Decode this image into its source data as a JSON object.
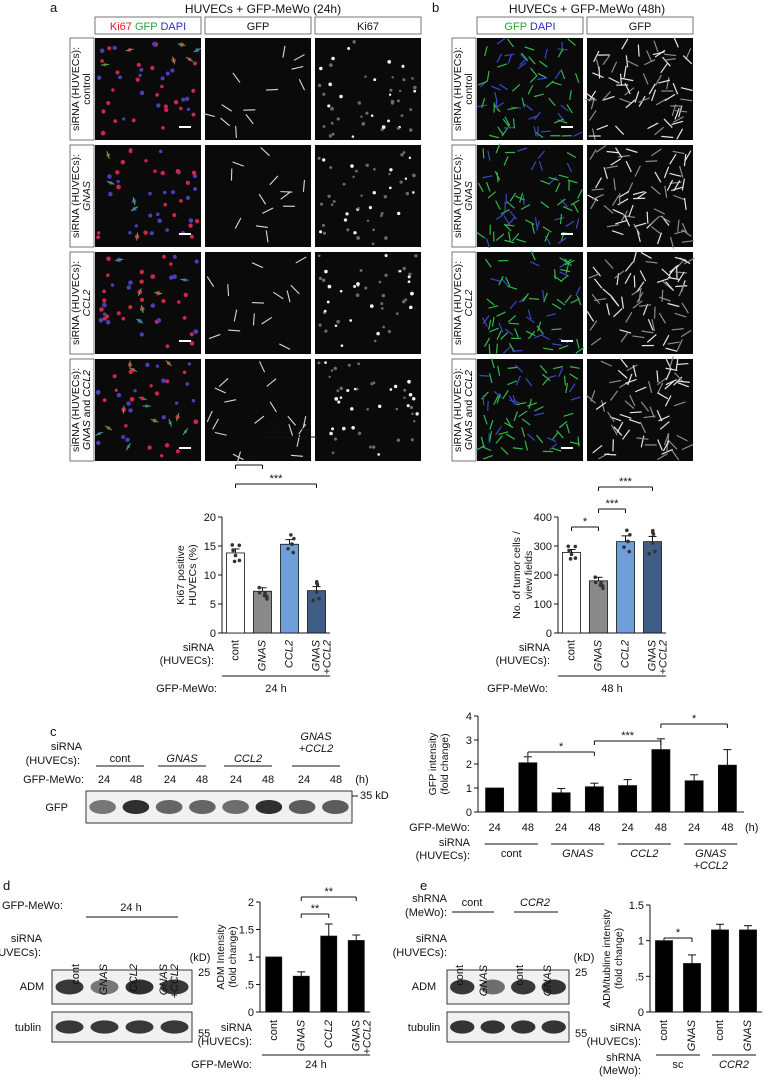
{
  "panels": {
    "a": {
      "letter": "a",
      "title": "HUVECs + GFP-MeWo (24h)",
      "columns": [
        {
          "parts": [
            {
              "text": "Ki67",
              "color": "#e8192c"
            },
            {
              "text": " GFP",
              "color": "#2aa335"
            },
            {
              "text": " DAPI",
              "color": "#2b2fbf"
            }
          ]
        },
        {
          "parts": [
            {
              "text": "GFP",
              "color": "#111111"
            }
          ]
        },
        {
          "parts": [
            {
              "text": "Ki67",
              "color": "#111111"
            }
          ]
        }
      ]
    },
    "b": {
      "letter": "b",
      "title": "HUVECs + GFP-MeWo (48h)",
      "columns": [
        {
          "parts": [
            {
              "text": "GFP",
              "color": "#2aa335"
            },
            {
              "text": "   DAPI",
              "color": "#2b2fbf"
            }
          ]
        },
        {
          "parts": [
            {
              "text": "GFP",
              "color": "#111111"
            }
          ]
        }
      ]
    },
    "c": {
      "letter": "c"
    },
    "d": {
      "letter": "d"
    },
    "e": {
      "letter": "e"
    }
  },
  "row_labels": [
    {
      "l1": "siRNA (HUVECs):",
      "l2": "control",
      "l2_italic": false
    },
    {
      "l1": "siRNA (HUVECs):",
      "l2": "GNAS",
      "l2_italic": true
    },
    {
      "l1": "siRNA (HUVECs):",
      "l2": "CCL2",
      "l2_italic": true
    },
    {
      "l1": "siRNA (HUVECs):",
      "l2": "GNAS and CCL2",
      "l2_italic": false
    }
  ],
  "chart_data": [
    {
      "panel": "a",
      "type": "bar",
      "categories": [
        "cont",
        "GNAS",
        "CCL2",
        "GNAS +CCL2"
      ],
      "values": [
        13.8,
        7.2,
        15.3,
        7.3
      ],
      "errors": [
        0.7,
        0.6,
        0.8,
        0.7
      ],
      "ylabel": "Ki67 positive HUVECs (%)",
      "ylim": [
        0,
        20
      ],
      "yticks": [
        0,
        5,
        10,
        15,
        20
      ],
      "bar_colors": [
        "#ffffff",
        "#8a8a8a",
        "#6f9fd8",
        "#3f5d86"
      ],
      "significance": [
        {
          "from": 0,
          "to": 1,
          "label": "***"
        },
        {
          "from": 1,
          "to": 2,
          "label": "***"
        },
        {
          "from": 2,
          "to": 3,
          "label": "***"
        },
        {
          "from": 0,
          "to": 3,
          "label": "***"
        }
      ],
      "row_label": "siRNA (HUVECs):",
      "group_label": "GFP-MeWo:",
      "group_value": "24 h"
    },
    {
      "panel": "b",
      "type": "bar",
      "categories": [
        "cont",
        "GNAS",
        "CCL2",
        "GNAS +CCL2"
      ],
      "values": [
        278,
        180,
        315,
        315
      ],
      "errors": [
        10,
        12,
        20,
        18
      ],
      "ylabel": "No. of tumor cells / view fields",
      "ylim": [
        0,
        400
      ],
      "yticks": [
        0,
        100,
        200,
        300,
        400
      ],
      "bar_colors": [
        "#ffffff",
        "#8a8a8a",
        "#6f9fd8",
        "#3f5d86"
      ],
      "significance": [
        {
          "from": 0,
          "to": 1,
          "label": "*"
        },
        {
          "from": 1,
          "to": 2,
          "label": "***"
        },
        {
          "from": 1,
          "to": 3,
          "label": "***"
        }
      ],
      "row_label": "siRNA (HUVECs):",
      "group_label": "GFP-MeWo:",
      "group_value": "48 h"
    },
    {
      "panel": "c",
      "type": "bar",
      "categories": [
        "24",
        "48",
        "24",
        "48",
        "24",
        "48",
        "24",
        "48"
      ],
      "values": [
        1.0,
        2.05,
        0.8,
        1.05,
        1.1,
        2.6,
        1.3,
        1.95
      ],
      "errors": [
        0,
        0.25,
        0.18,
        0.15,
        0.25,
        0.45,
        0.25,
        0.65
      ],
      "ylabel": "GFP intensity (fold change)",
      "ylim": [
        0,
        4
      ],
      "yticks": [
        0,
        1,
        2,
        3,
        4
      ],
      "significance": [
        {
          "from": 1,
          "to": 3,
          "label": "*"
        },
        {
          "from": 3,
          "to": 5,
          "label": "***"
        },
        {
          "from": 5,
          "to": 7,
          "label": "*"
        }
      ],
      "row_label": "GFP-MeWo:",
      "unit": "(h)",
      "groups_label": "siRNA (HUVECs):",
      "groups": [
        "cont",
        "GNAS",
        "CCL2",
        "GNAS +CCL2"
      ]
    },
    {
      "panel": "d",
      "type": "bar",
      "categories": [
        "cont",
        "GNAS",
        "CCL2",
        "GNAS +CCL2"
      ],
      "values": [
        1.0,
        0.65,
        1.38,
        1.3
      ],
      "errors": [
        0,
        0.08,
        0.22,
        0.1
      ],
      "ylabel": "ADM Intensity (fold change)",
      "ylim": [
        0,
        2
      ],
      "yticks": [
        0,
        0.5,
        1,
        1.5,
        2
      ],
      "ytick_labels": [
        "0",
        ".5",
        "1",
        "1.5",
        "2"
      ],
      "significance": [
        {
          "from": 1,
          "to": 2,
          "label": "**"
        },
        {
          "from": 1,
          "to": 3,
          "label": "**"
        }
      ],
      "row_label": "siRNA (HUVECs):",
      "group_label": "GFP-MeWo:",
      "group_value": "24 h"
    },
    {
      "panel": "e",
      "type": "bar",
      "categories": [
        "cont",
        "GNAS",
        "cont",
        "GNAS"
      ],
      "values": [
        1.0,
        0.68,
        1.15,
        1.15
      ],
      "errors": [
        0,
        0.12,
        0.08,
        0.06
      ],
      "ylabel": "ADM/tubline intensity (fold change)",
      "ylim": [
        0,
        1.5
      ],
      "yticks": [
        0,
        0.5,
        1,
        1.5
      ],
      "ytick_labels": [
        "0",
        ".5",
        "1",
        "1.5"
      ],
      "significance": [
        {
          "from": 0,
          "to": 1,
          "label": "*"
        }
      ],
      "row_label": "siRNA (HUVECs):",
      "group_label": "shRNA (MeWo):",
      "groups": [
        "sc",
        "CCR2"
      ]
    }
  ],
  "blot_c": {
    "siRNA_label": "siRNA (HUVECs):",
    "groups": [
      "cont",
      "GNAS",
      "CCL2",
      "GNAS +CCL2"
    ],
    "time_label": "GFP-MeWo:",
    "times": [
      "24",
      "48",
      "24",
      "48",
      "24",
      "48",
      "24",
      "48"
    ],
    "unit": "(h)",
    "band_label": "GFP",
    "marker": "35 kD"
  },
  "blot_d": {
    "gfp_label": "GFP-MeWo:",
    "gfp_value": "24 h",
    "siRNA_label": "siRNA (HUVECs):",
    "lanes": [
      "cont",
      "GNAS",
      "CCL2",
      "GNAS +CCL2"
    ],
    "unit": "(kD)",
    "bands": [
      "ADM",
      "tublin"
    ],
    "markers": [
      "25",
      "55"
    ]
  },
  "blot_e": {
    "shRNA_label": "shRNA (MeWo):",
    "shRNA_groups": [
      "cont",
      "CCR2"
    ],
    "siRNA_label": "siRNA (HUVECs):",
    "lanes": [
      "cont",
      "GNAS",
      "cont",
      "GNAS"
    ],
    "unit": "(kD)",
    "bands": [
      "ADM",
      "tubulin"
    ],
    "markers": [
      "25",
      "55"
    ]
  }
}
